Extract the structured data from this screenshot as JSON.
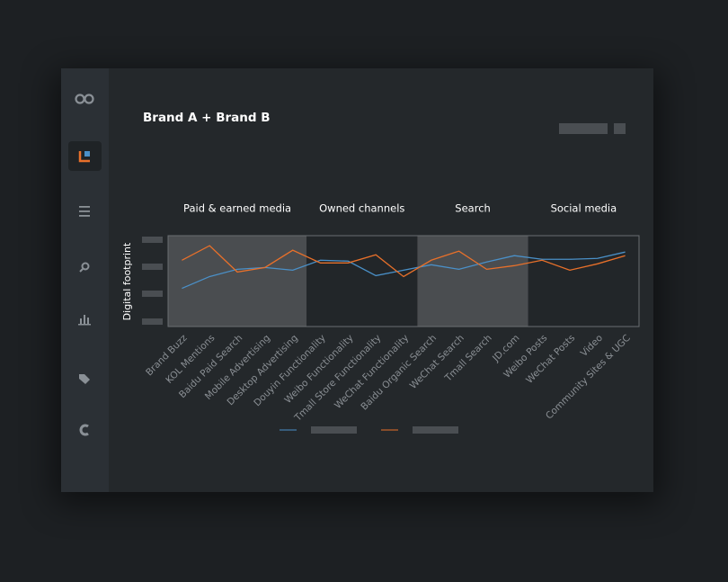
{
  "header": {
    "title": "Brand A + Brand B"
  },
  "chart_data": {
    "type": "line",
    "y_label": "Digital footprint",
    "groups": [
      "Paid & earned media",
      "Owned channels",
      "Search",
      "Social media"
    ],
    "categories": [
      "Brand Buzz",
      "KOL Mentions",
      "Baidu Paid Search",
      "Mobile Advertising",
      "Desktop Advertising",
      "Douyin Functionality",
      "Weibo Functionality",
      "Tmall Store Functionality",
      "WeChat Functionality",
      "Baidu Organic Search",
      "WeChat Search",
      "Tmall Search",
      "JD.com",
      "Weibo Posts",
      "WeChat Posts",
      "Video",
      "Community Sites & UGC"
    ],
    "series": [
      {
        "color": "#4a90c8",
        "values": [
          42,
          55,
          63,
          65,
          62,
          73,
          72,
          56,
          62,
          68,
          63,
          71,
          78,
          74,
          74,
          75,
          82
        ]
      },
      {
        "color": "#e8702a",
        "values": [
          73,
          89,
          60,
          65,
          84,
          70,
          70,
          79,
          55,
          73,
          83,
          63,
          67,
          73,
          62,
          69,
          78
        ]
      }
    ],
    "ylim": [
      0,
      100
    ]
  }
}
